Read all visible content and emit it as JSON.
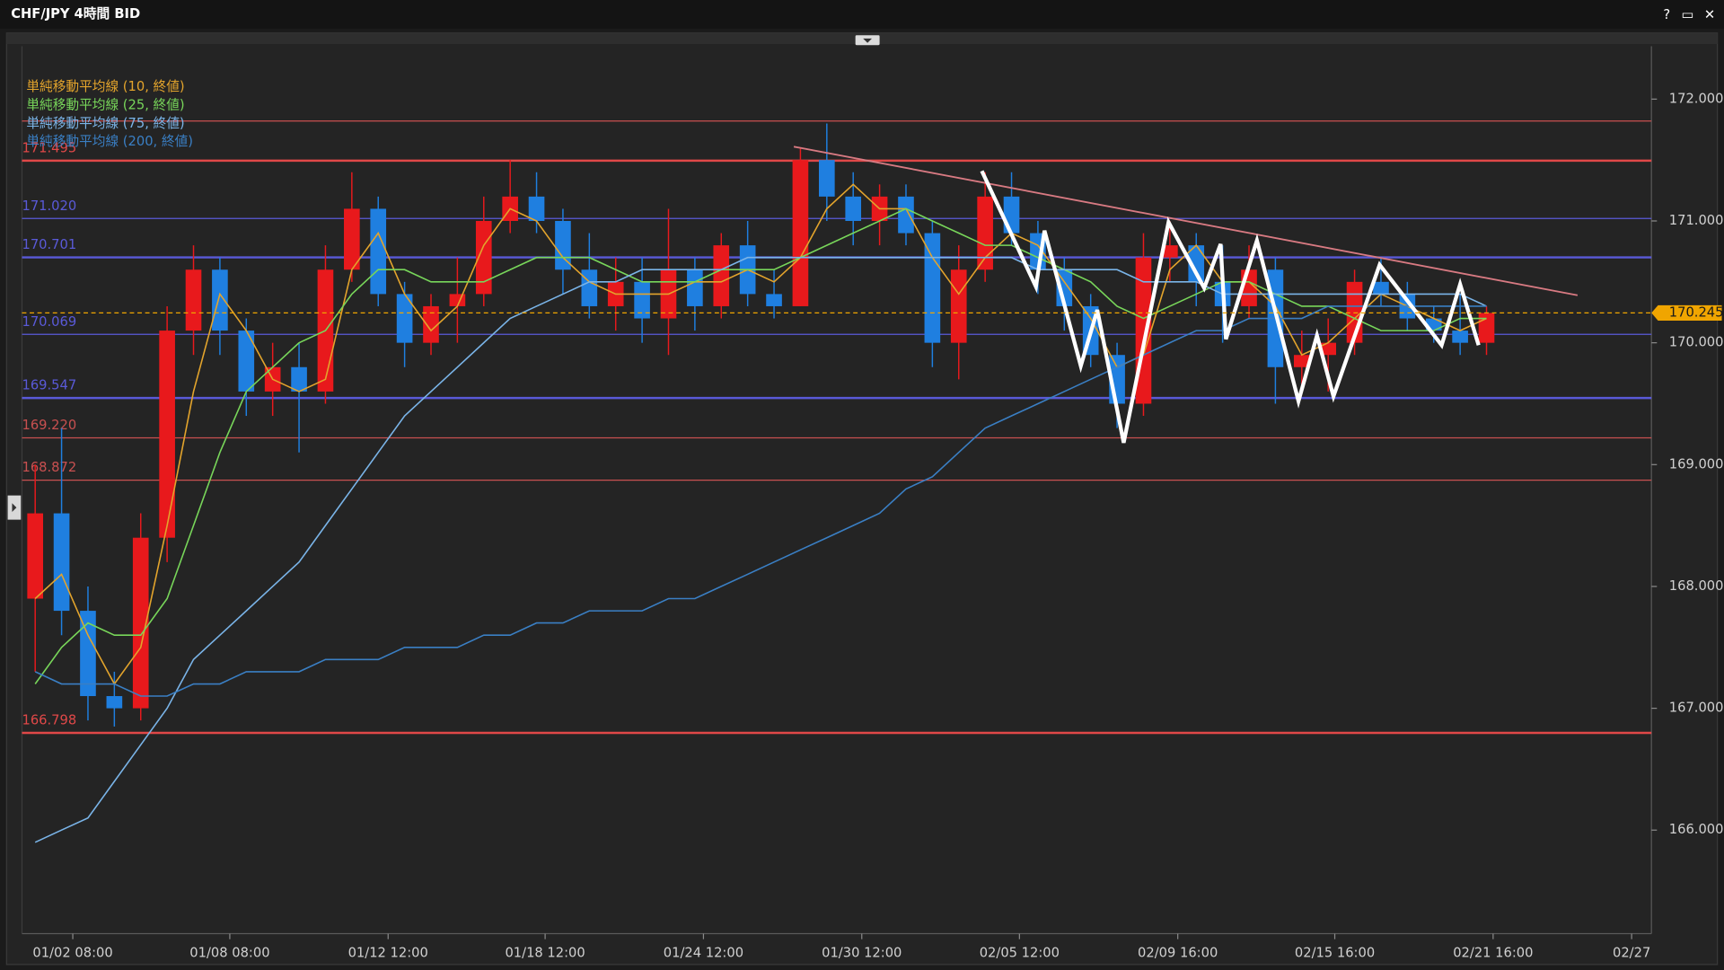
{
  "chart_data": {
    "type": "candlestick",
    "title": "CHF/JPY 4時間 BID",
    "window_controls": [
      "?",
      "▭",
      "✕"
    ],
    "x": [
      2,
      6,
      10,
      14,
      18,
      22,
      26,
      30,
      34,
      38,
      42,
      46,
      50,
      54,
      58,
      62,
      66,
      70,
      74,
      78,
      82,
      86,
      90,
      94,
      98,
      102,
      106,
      110,
      114,
      118,
      122,
      126,
      130,
      134,
      138,
      142,
      146,
      150,
      154,
      158,
      162,
      166,
      170,
      174,
      178,
      182,
      186,
      190,
      194,
      198,
      202,
      206,
      210,
      214,
      218,
      222
    ],
    "open": [
      167.9,
      168.6,
      167.8,
      167.1,
      167.0,
      168.4,
      170.1,
      170.6,
      170.1,
      169.6,
      169.8,
      169.6,
      170.6,
      171.1,
      170.4,
      170.0,
      170.3,
      170.4,
      171.0,
      171.2,
      171.0,
      170.6,
      170.3,
      170.5,
      170.2,
      170.6,
      170.3,
      170.8,
      170.4,
      170.3,
      171.5,
      171.2,
      171.0,
      171.2,
      170.9,
      170.0,
      170.6,
      171.2,
      170.9,
      170.6,
      170.3,
      169.9,
      169.5,
      170.7,
      170.8,
      170.5,
      170.3,
      170.6,
      169.8,
      169.9,
      170.0,
      170.5,
      170.4,
      170.2,
      170.1,
      170.0
    ],
    "high": [
      169.0,
      169.3,
      168.0,
      167.3,
      168.6,
      170.3,
      170.8,
      170.7,
      170.2,
      170.0,
      170.0,
      170.8,
      171.4,
      171.2,
      170.5,
      170.4,
      170.7,
      171.2,
      171.5,
      171.4,
      171.1,
      170.9,
      170.7,
      170.7,
      171.1,
      170.7,
      170.9,
      171.0,
      170.6,
      171.6,
      171.8,
      171.4,
      171.3,
      171.3,
      171.0,
      170.8,
      171.4,
      171.4,
      171.0,
      170.7,
      170.4,
      170.0,
      170.9,
      171.0,
      170.9,
      170.8,
      170.8,
      170.7,
      170.1,
      170.2,
      170.6,
      170.7,
      170.5,
      170.3,
      170.4,
      170.3
    ],
    "low": [
      167.3,
      167.6,
      166.9,
      166.85,
      166.9,
      168.2,
      169.9,
      169.9,
      169.4,
      169.4,
      169.1,
      169.5,
      170.5,
      170.3,
      169.8,
      169.9,
      170.0,
      170.3,
      170.9,
      170.9,
      170.4,
      170.2,
      170.1,
      170.0,
      169.9,
      170.1,
      170.2,
      170.3,
      170.2,
      170.3,
      171.0,
      170.8,
      170.8,
      170.8,
      169.8,
      169.7,
      170.5,
      170.8,
      170.4,
      170.1,
      169.8,
      169.3,
      169.4,
      170.5,
      170.3,
      170.0,
      170.2,
      169.5,
      169.6,
      169.6,
      169.9,
      170.3,
      170.1,
      170.0,
      169.9,
      169.9
    ],
    "close": [
      168.6,
      167.8,
      167.1,
      167.0,
      168.4,
      170.1,
      170.6,
      170.1,
      169.6,
      169.8,
      169.6,
      170.6,
      171.1,
      170.4,
      170.0,
      170.3,
      170.4,
      171.0,
      171.2,
      171.0,
      170.6,
      170.3,
      170.5,
      170.2,
      170.6,
      170.3,
      170.8,
      170.4,
      170.3,
      171.5,
      171.2,
      171.0,
      171.2,
      170.9,
      170.0,
      170.6,
      171.2,
      170.9,
      170.6,
      170.3,
      169.9,
      169.5,
      170.7,
      170.8,
      170.5,
      170.3,
      170.6,
      169.8,
      169.9,
      170.0,
      170.5,
      170.4,
      170.2,
      170.1,
      170.0,
      170.245
    ],
    "up_color": "#e8191c",
    "down_color": "#1f7fe0",
    "series": [
      {
        "name": "単純移動平均線 (10, 終値)",
        "color": "#e3a42c",
        "values": [
          167.9,
          168.1,
          167.6,
          167.2,
          167.5,
          168.5,
          169.6,
          170.4,
          170.1,
          169.7,
          169.6,
          169.7,
          170.6,
          170.9,
          170.4,
          170.1,
          170.3,
          170.8,
          171.1,
          171.0,
          170.7,
          170.5,
          170.4,
          170.4,
          170.4,
          170.5,
          170.5,
          170.6,
          170.5,
          170.7,
          171.1,
          171.3,
          171.1,
          171.1,
          170.7,
          170.4,
          170.7,
          170.9,
          170.8,
          170.5,
          170.2,
          169.8,
          169.9,
          170.6,
          170.8,
          170.5,
          170.5,
          170.3,
          169.9,
          170.0,
          170.2,
          170.4,
          170.3,
          170.2,
          170.1,
          170.2
        ]
      },
      {
        "name": "単純移動平均線 (25, 終値)",
        "color": "#78d65a",
        "values": [
          167.2,
          167.5,
          167.7,
          167.6,
          167.6,
          167.9,
          168.5,
          169.1,
          169.6,
          169.8,
          170.0,
          170.1,
          170.4,
          170.6,
          170.6,
          170.5,
          170.5,
          170.5,
          170.6,
          170.7,
          170.7,
          170.7,
          170.6,
          170.5,
          170.5,
          170.5,
          170.6,
          170.6,
          170.6,
          170.7,
          170.8,
          170.9,
          171.0,
          171.1,
          171.0,
          170.9,
          170.8,
          170.8,
          170.7,
          170.6,
          170.5,
          170.3,
          170.2,
          170.3,
          170.4,
          170.5,
          170.5,
          170.4,
          170.3,
          170.3,
          170.2,
          170.1,
          170.1,
          170.1,
          170.2,
          170.2
        ]
      },
      {
        "name": "単純移動平均線 (75, 終値)",
        "color": "#7ab4e8",
        "values": [
          165.9,
          166.0,
          166.1,
          166.4,
          166.7,
          167.0,
          167.4,
          167.6,
          167.8,
          168.0,
          168.2,
          168.5,
          168.8,
          169.1,
          169.4,
          169.6,
          169.8,
          170.0,
          170.2,
          170.3,
          170.4,
          170.5,
          170.5,
          170.6,
          170.6,
          170.6,
          170.6,
          170.7,
          170.7,
          170.7,
          170.7,
          170.7,
          170.7,
          170.7,
          170.7,
          170.7,
          170.7,
          170.7,
          170.6,
          170.6,
          170.6,
          170.6,
          170.5,
          170.5,
          170.5,
          170.4,
          170.4,
          170.4,
          170.4,
          170.4,
          170.4,
          170.4,
          170.4,
          170.4,
          170.4,
          170.3
        ]
      },
      {
        "name": "単純移動平均線 (200, 終値)",
        "color": "#3a7fc4",
        "values": [
          167.3,
          167.2,
          167.2,
          167.2,
          167.1,
          167.1,
          167.2,
          167.2,
          167.3,
          167.3,
          167.3,
          167.4,
          167.4,
          167.4,
          167.5,
          167.5,
          167.5,
          167.6,
          167.6,
          167.7,
          167.7,
          167.8,
          167.8,
          167.8,
          167.9,
          167.9,
          168.0,
          168.1,
          168.2,
          168.3,
          168.4,
          168.5,
          168.6,
          168.8,
          168.9,
          169.1,
          169.3,
          169.4,
          169.5,
          169.6,
          169.7,
          169.8,
          169.9,
          170.0,
          170.1,
          170.1,
          170.2,
          170.2,
          170.2,
          170.3,
          170.3,
          170.3,
          170.3,
          170.3,
          170.3,
          170.3
        ]
      }
    ],
    "xlim": [
      0,
      247
    ],
    "xticks": [
      {
        "value": 7.7,
        "label": "01/02 08:00"
      },
      {
        "value": 31.5,
        "label": "01/08 08:00"
      },
      {
        "value": 55.5,
        "label": "01/12 12:00"
      },
      {
        "value": 79.3,
        "label": "01/18 12:00"
      },
      {
        "value": 103.3,
        "label": "01/24 12:00"
      },
      {
        "value": 127.3,
        "label": "01/30 12:00"
      },
      {
        "value": 151.2,
        "label": "02/05 12:00"
      },
      {
        "value": 175.2,
        "label": "02/09 16:00"
      },
      {
        "value": 199,
        "label": "02/15 16:00"
      },
      {
        "value": 223,
        "label": "02/21 16:00"
      },
      {
        "value": 244,
        "label": "02/27"
      }
    ],
    "ylim": [
      165.15,
      172.434
    ],
    "yticks": [
      {
        "value": 166,
        "label": "166.000"
      },
      {
        "value": 167,
        "label": "167.000"
      },
      {
        "value": 168,
        "label": "168.000"
      },
      {
        "value": 169,
        "label": "169.000"
      },
      {
        "value": 170,
        "label": "170.000"
      },
      {
        "value": 171,
        "label": "171.000"
      },
      {
        "value": 172,
        "label": "172.000"
      }
    ],
    "levels": [
      {
        "value": 171.82,
        "label": null,
        "color": "#c85050",
        "thick": false
      },
      {
        "value": 171.495,
        "label": "171.495",
        "color": "#e04848",
        "thick": true
      },
      {
        "value": 171.02,
        "label": "171.020",
        "color": "#5a5ad8",
        "thick": false
      },
      {
        "value": 170.701,
        "label": "170.701",
        "color": "#5a5ad8",
        "thick": true
      },
      {
        "value": 170.069,
        "label": "170.069",
        "color": "#5a5ad8",
        "thick": false
      },
      {
        "value": 169.547,
        "label": "169.547",
        "color": "#5a5ad8",
        "thick": true
      },
      {
        "value": 169.22,
        "label": "169.220",
        "color": "#c85050",
        "thick": false
      },
      {
        "value": 168.872,
        "label": "168.872",
        "color": "#c85050",
        "thick": false
      },
      {
        "value": 166.798,
        "label": "166.798",
        "color": "#e04848",
        "thick": true
      }
    ],
    "last_price": 170.245,
    "last_price_label": "170.245",
    "last_price_color": "#f0a500",
    "trendline": {
      "color": "#d87a82",
      "x": [
        117,
        235.8
      ],
      "y": [
        171.61,
        170.39
      ]
    },
    "zigzag": {
      "color": "#ffffff",
      "x": [
        145.5,
        153.7,
        155.0,
        160.5,
        163.0,
        167.0,
        173.8,
        179.2,
        181.7,
        182.5,
        187.2,
        193.5,
        196.3,
        198.8,
        205.8,
        215.2,
        218.0,
        220.8
      ],
      "y": [
        171.41,
        170.46,
        170.92,
        169.81,
        170.27,
        169.18,
        170.99,
        170.45,
        170.81,
        170.03,
        170.84,
        169.52,
        170.06,
        169.56,
        170.64,
        169.98,
        170.48,
        169.98
      ]
    }
  }
}
